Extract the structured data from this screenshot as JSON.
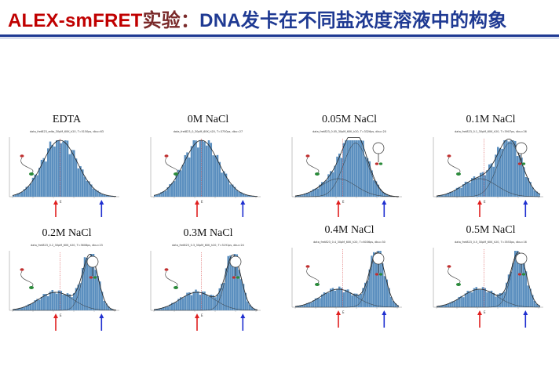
{
  "slide": {
    "title_prefix": "ALEX-smFRET",
    "title_mid": "实验：",
    "title_main": "DNA发卡在不同盐浓度溶液中的构象"
  },
  "panels": [
    {
      "label": "EDTA",
      "subtitle": "data_fret823_edta_30pM_60K_h20, T=5150ps, dbu=63",
      "E_peak": 0.5
    },
    {
      "label": "0M NaCl",
      "subtitle": "data_fret823_0_30pM_60K_h20, T=3750ps, dbu=27",
      "E_peak": 0.5
    },
    {
      "label": "0.05M NaCl",
      "subtitle": "data_fret823_0.05_30pM_60K_h20, T=3326ps, dbu=20",
      "E_peak": 0.65
    },
    {
      "label": "0.1M NaCl",
      "subtitle": "data_fret823_0.1_30pM_60K_h20, T=3907ps, dbu=26",
      "E_peak": 0.8
    },
    {
      "label": "0.2M NaCl",
      "subtitle": "data_fret823_0.2_30pM_60K_h20, T=3608ps, dbu=23",
      "E_peak": 0.85
    },
    {
      "label": "0.3M NaCl",
      "subtitle": "data_fret823_0.3_30pM_60K_h20, T=3191ps, dbu=24",
      "E_peak": 0.87
    },
    {
      "label": "0.4M NaCl",
      "subtitle": "data_fret823_0.4_30pM_60K_h20, T=6036ps, dbu=30",
      "E_peak": 0.9
    },
    {
      "label": "0.5M NaCl",
      "subtitle": "data_fret823_0.5_30pM_60K_h20, T=3553ps, dbu=16",
      "E_peak": 0.9
    }
  ],
  "arrow_label": "E",
  "colors": {
    "title_red": "#c00000",
    "title_blue": "#1f3a93",
    "bar": "#5b8fbf",
    "red_arrow": "#e02020",
    "blue_arrow": "#1f2fd0"
  }
}
